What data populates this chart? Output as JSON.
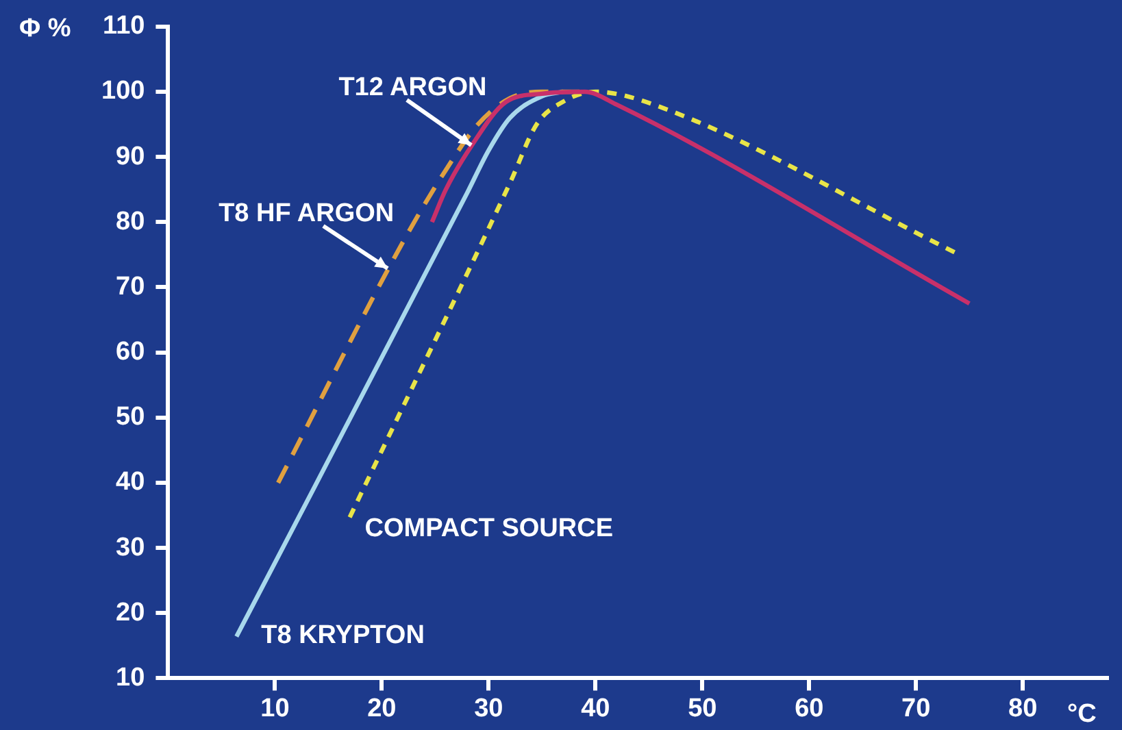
{
  "chart_data": {
    "type": "line",
    "xlabel": "°C",
    "ylabel": "Φ %",
    "xlim": [
      0,
      88
    ],
    "xticks": [
      10,
      20,
      30,
      40,
      50,
      60,
      70,
      80
    ],
    "ylim": [
      10,
      110
    ],
    "yticks": [
      10,
      20,
      30,
      40,
      50,
      60,
      70,
      80,
      90,
      100,
      110
    ],
    "marker": "none",
    "series": [
      {
        "color": "#c8306a",
        "line_style": "solid",
        "x": [
          24.7,
          26,
          28.4,
          31.6,
          35,
          39,
          42,
          75
        ],
        "values": [
          80,
          85,
          91.7,
          98.4,
          99.7,
          100,
          98,
          67.5
        ]
      },
      {
        "color": "#e0a040",
        "line_style": "dashed",
        "x": [
          10.3,
          22,
          26,
          29,
          32,
          35,
          38.5
        ],
        "values": [
          40,
          77,
          88,
          95,
          99,
          100,
          100
        ]
      },
      {
        "color": "#a8d8ec",
        "line_style": "solid",
        "x": [
          6.4,
          28,
          30,
          32,
          35,
          37
        ],
        "values": [
          16.4,
          84.5,
          91,
          96,
          99.3,
          100
        ]
      },
      {
        "color": "#e8e448",
        "line_style": "dotted",
        "x": [
          17,
          32,
          34.5,
          37,
          40,
          45.5,
          73.7
        ],
        "values": [
          34.7,
          86,
          95,
          98.5,
          100,
          98,
          75.3
        ]
      }
    ],
    "annotations": [
      {
        "text": "T12 ARGON",
        "x": 28.4,
        "y": 91.7
      },
      {
        "text": "T8 HF ARGON",
        "x": 20.5,
        "y": 72.8
      },
      {
        "text": "T8 KRYPTON",
        "x": 6.4,
        "y": 16.4
      },
      {
        "text": "COMPACT SOURCE",
        "x": 17,
        "y": 34.7
      }
    ]
  }
}
